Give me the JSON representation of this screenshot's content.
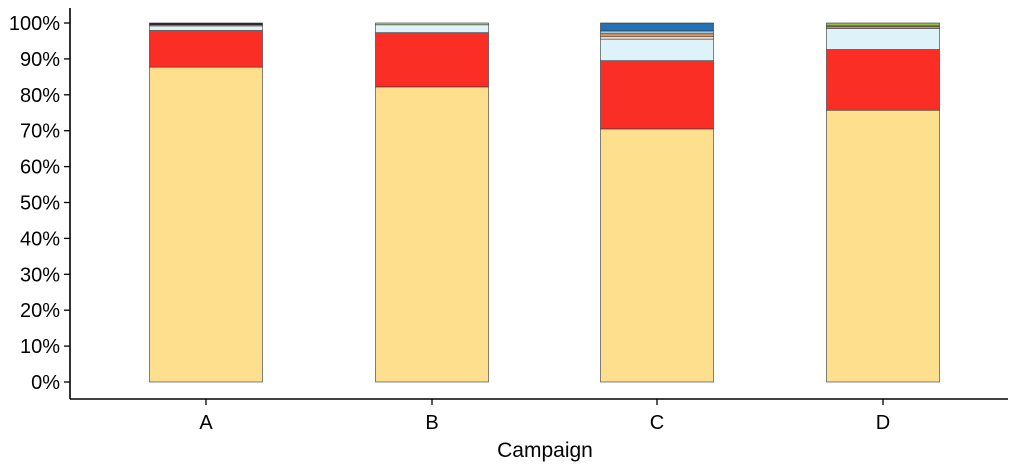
{
  "chart_data": {
    "type": "bar",
    "stacked": true,
    "title": "",
    "xlabel": "Campaign",
    "ylabel": "",
    "categories": [
      "A",
      "B",
      "C",
      "D"
    ],
    "ylim": [
      0,
      100
    ],
    "yticks": [
      0,
      10,
      20,
      30,
      40,
      50,
      60,
      70,
      80,
      90,
      100
    ],
    "ytick_labels": [
      "0%",
      "10%",
      "20%",
      "30%",
      "40%",
      "50%",
      "60%",
      "70%",
      "80%",
      "90%",
      "100%"
    ],
    "grid": false,
    "legend": "none",
    "series": [
      {
        "color": "#FDDF8E",
        "values": [
          87.7,
          82.2,
          70.5,
          75.7
        ]
      },
      {
        "color": "#FB2E26",
        "values": [
          10.2,
          15.1,
          19.0,
          16.9
        ]
      },
      {
        "color": "#DDF3F9",
        "values": [
          1.3,
          2.2,
          6.0,
          5.9
        ]
      },
      {
        "color": "#F7D5C6",
        "values": [
          0.3,
          0.0,
          0.8,
          0.4
        ]
      },
      {
        "color": "#E69A4C",
        "values": [
          0.0,
          0.0,
          0.7,
          0.3
        ]
      },
      {
        "color": "#9CC7E7",
        "values": [
          0.0,
          0.0,
          0.8,
          0.0
        ]
      },
      {
        "color": "#B5DD8F",
        "values": [
          0.0,
          0.5,
          0.0,
          0.0
        ]
      },
      {
        "color": "#8EC24C",
        "values": [
          0.0,
          0.0,
          0.0,
          0.8
        ]
      },
      {
        "color": "#2272B5",
        "values": [
          0.0,
          0.0,
          2.2,
          0.0
        ]
      },
      {
        "color": "#3B1F1F",
        "values": [
          0.5,
          0.0,
          0.0,
          0.0
        ]
      }
    ]
  }
}
